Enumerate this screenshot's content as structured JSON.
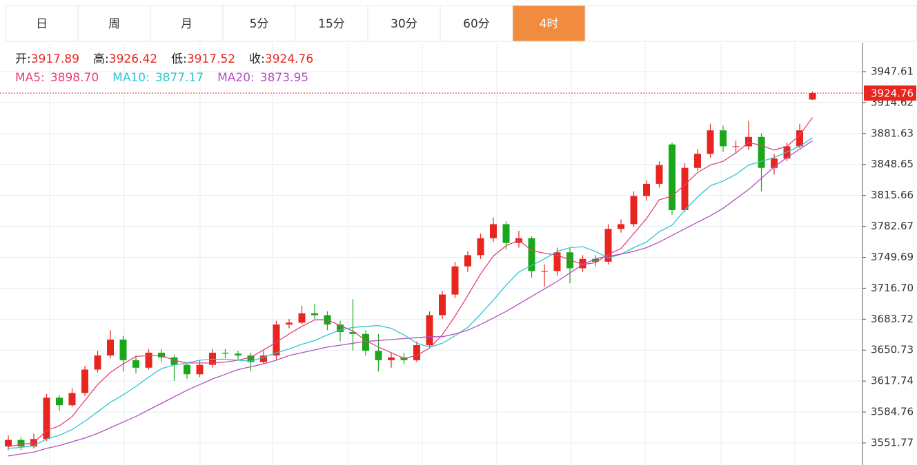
{
  "tabs": {
    "items": [
      "日",
      "周",
      "月",
      "5分",
      "15分",
      "30分",
      "60分",
      "4时"
    ],
    "active": 7
  },
  "chart_data": {
    "type": "candlestick",
    "ylim": [
      3528.27,
      3978.45
    ],
    "yticks": [
      3947.61,
      3914.62,
      3881.63,
      3848.65,
      3815.66,
      3782.67,
      3749.69,
      {
        "value": 3716.7,
        "label": "3716.70"
      },
      3683.72,
      3650.73,
      3617.74,
      3584.76,
      3551.77
    ],
    "grid": true,
    "up_color": "#e8251f",
    "down_color": "#1aa81a",
    "ohlc_labels": [
      "开:",
      "高:",
      "低:",
      "收:"
    ],
    "open": [
      3548,
      3555,
      3548,
      3556,
      3600,
      3592,
      3605,
      3630,
      3645,
      3662,
      3640,
      3632,
      3648,
      3643,
      3635,
      3625,
      3635,
      3648,
      3647,
      3645,
      3638,
      3645,
      3678,
      3680,
      3690,
      3688,
      3678,
      3670,
      3668,
      3650,
      3640,
      3643,
      3640,
      3656,
      3688,
      3710,
      3740,
      3752,
      3770,
      3785,
      3765,
      3770,
      3735,
      3735,
      3755,
      3738,
      3748,
      3745,
      3780,
      3785,
      3815,
      3828,
      3870,
      3800,
      3845,
      3860,
      3885,
      3868,
      3868,
      3878,
      3845,
      3855,
      3868,
      3917.89
    ],
    "high": [
      3560,
      3558,
      3562,
      3604,
      3603,
      3610,
      3634,
      3650,
      3672,
      3666,
      3645,
      3652,
      3652,
      3646,
      3638,
      3640,
      3652,
      3652,
      3650,
      3648,
      3650,
      3682,
      3684,
      3698,
      3700,
      3692,
      3682,
      3705,
      3672,
      3668,
      3648,
      3648,
      3660,
      3692,
      3714,
      3745,
      3756,
      3775,
      3792,
      3788,
      3778,
      3772,
      3742,
      3760,
      3760,
      3752,
      3752,
      3785,
      3790,
      3820,
      3832,
      3852,
      3872,
      3850,
      3865,
      3892,
      3890,
      3874,
      3895,
      3882,
      3860,
      3872,
      3892,
      3926.42
    ],
    "low": [
      3544,
      3544,
      3546,
      3554,
      3586,
      3590,
      3602,
      3627,
      3642,
      3628,
      3626,
      3630,
      3638,
      3618,
      3620,
      3622,
      3632,
      3642,
      3640,
      3628,
      3636,
      3640,
      3674,
      3678,
      3684,
      3672,
      3660,
      3650,
      3645,
      3628,
      3632,
      3636,
      3638,
      3654,
      3684,
      3706,
      3734,
      3748,
      3766,
      3758,
      3760,
      3728,
      3718,
      3730,
      3722,
      3734,
      3740,
      3742,
      3776,
      3782,
      3810,
      3824,
      3795,
      3798,
      3842,
      3856,
      3862,
      3860,
      3864,
      3820,
      3838,
      3852,
      3866,
      3917.52
    ],
    "close": [
      3555,
      3548,
      3556,
      3600,
      3592,
      3605,
      3630,
      3645,
      3662,
      3640,
      3632,
      3648,
      3643,
      3635,
      3625,
      3635,
      3648,
      3647,
      3645,
      3638,
      3645,
      3678,
      3680,
      3690,
      3688,
      3678,
      3670,
      3668,
      3650,
      3640,
      3643,
      3640,
      3656,
      3688,
      3710,
      3740,
      3752,
      3770,
      3785,
      3765,
      3770,
      3735,
      3735,
      3755,
      3738,
      3748,
      3745,
      3780,
      3785,
      3815,
      3828,
      3848,
      3800,
      3845,
      3860,
      3885,
      3868,
      3868,
      3878,
      3845,
      3855,
      3868,
      3885,
      3924.76
    ],
    "series": [
      {
        "name": "MA5:",
        "color": "#e5407b",
        "values": [
          3548,
          3550,
          3552,
          3565,
          3570,
          3580,
          3597,
          3614,
          3627,
          3636,
          3644,
          3645,
          3645,
          3640,
          3637,
          3637,
          3637,
          3638,
          3640,
          3643,
          3651,
          3659,
          3668,
          3676,
          3683,
          3683,
          3677,
          3671,
          3661,
          3654,
          3648,
          3642,
          3645,
          3653,
          3667,
          3687,
          3709,
          3732,
          3751,
          3762,
          3768,
          3757,
          3754,
          3752,
          3747,
          3742,
          3744,
          3753,
          3759,
          3775,
          3791,
          3811,
          3815,
          3827,
          3840,
          3848,
          3852,
          3861,
          3872,
          3869,
          3864,
          3868,
          3880,
          3898.7
        ],
        "value_labels": [
          null,
          null,
          null,
          null,
          null,
          null,
          null,
          null,
          null,
          null,
          null,
          null,
          null,
          null,
          null,
          null,
          null,
          null,
          null,
          null,
          null,
          null,
          null,
          null,
          null,
          null,
          null,
          null,
          null,
          null,
          null,
          null,
          null,
          null,
          null,
          null,
          null,
          null,
          null,
          null,
          null,
          null,
          null,
          null,
          null,
          null,
          null,
          null,
          null,
          null,
          null,
          null,
          null,
          null,
          null,
          null,
          null,
          null,
          null,
          null,
          null,
          null,
          null,
          "3898.70"
        ]
      },
      {
        "name": "MA10:",
        "color": "#2dc5cf",
        "values": [
          3546,
          3547,
          3549,
          3556,
          3560,
          3566,
          3575,
          3585,
          3595,
          3603,
          3612,
          3622,
          3631,
          3635,
          3637,
          3640,
          3641,
          3641,
          3640,
          3639,
          3643,
          3648,
          3652,
          3657,
          3661,
          3667,
          3672,
          3675,
          3676,
          3677,
          3674,
          3667,
          3658,
          3654,
          3658,
          3666,
          3675,
          3689,
          3704,
          3720,
          3734,
          3741,
          3748,
          3756,
          3760,
          3761,
          3756,
          3749,
          3753,
          3760,
          3766,
          3777,
          3784,
          3800,
          3814,
          3826,
          3831,
          3838,
          3848,
          3852,
          3856,
          3862,
          3868,
          3877.17
        ]
      },
      {
        "name": "MA20:",
        "color": "#b44fbf",
        "values": [
          3538,
          3540,
          3542,
          3546,
          3549,
          3553,
          3557,
          3562,
          3568,
          3574,
          3580,
          3587,
          3594,
          3601,
          3608,
          3614,
          3620,
          3625,
          3630,
          3633,
          3636,
          3640,
          3645,
          3648,
          3651,
          3654,
          3656,
          3658,
          3660,
          3661,
          3662,
          3663,
          3664,
          3665,
          3665,
          3668,
          3672,
          3678,
          3685,
          3692,
          3700,
          3708,
          3716,
          3724,
          3733,
          3742,
          3748,
          3751,
          3753,
          3756,
          3760,
          3766,
          3773,
          3780,
          3787,
          3794,
          3802,
          3812,
          3822,
          3834,
          3846,
          3856,
          3865,
          3873.95
        ]
      }
    ]
  }
}
